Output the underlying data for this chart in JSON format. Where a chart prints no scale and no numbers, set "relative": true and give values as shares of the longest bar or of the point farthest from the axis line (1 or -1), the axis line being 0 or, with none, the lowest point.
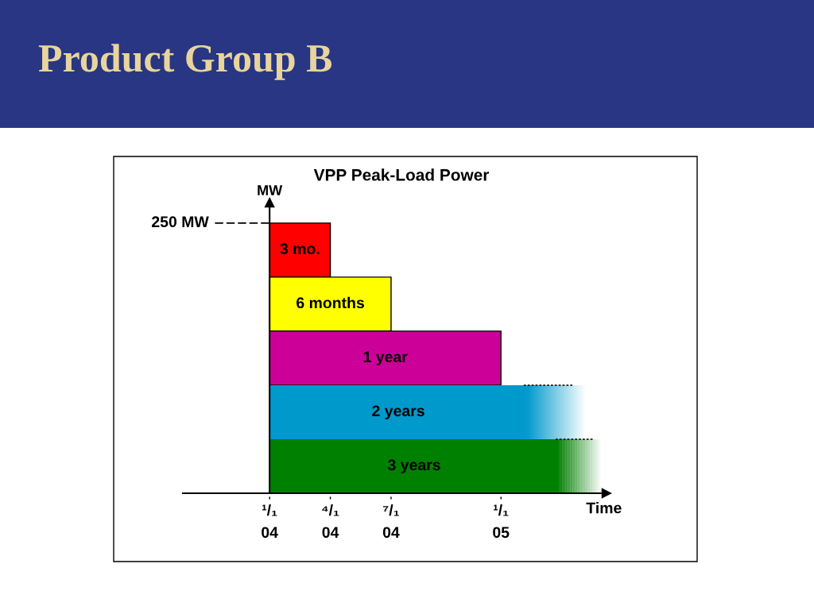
{
  "chart_data": {
    "type": "bar",
    "orientation": "horizontal",
    "relative": true,
    "title": "Product Group B",
    "subtitle": "VPP Peak-Load Power",
    "xlabel": "Time",
    "ylabel": "MW",
    "categories": [
      "3 mo.",
      "6 months",
      "1 year",
      "2 years",
      "3 years"
    ],
    "values": [
      0.21,
      0.42,
      0.8,
      0.89,
      1
    ],
    "colors": [
      "#ff0000",
      "#ffff00",
      "#cc0099",
      "#0099cc",
      "#008000"
    ],
    "annotations": [
      "250 MW",
      "¹/₁\n04",
      {
        "text": "⁴/₁\n04",
        "x": 0.21
      },
      {
        "text": "⁷/₁\n04",
        "x": 0.42
      },
      {
        "text": "¹/₁\n05",
        "x": 0.8
      }
    ],
    "tick_labels": "x"
  }
}
